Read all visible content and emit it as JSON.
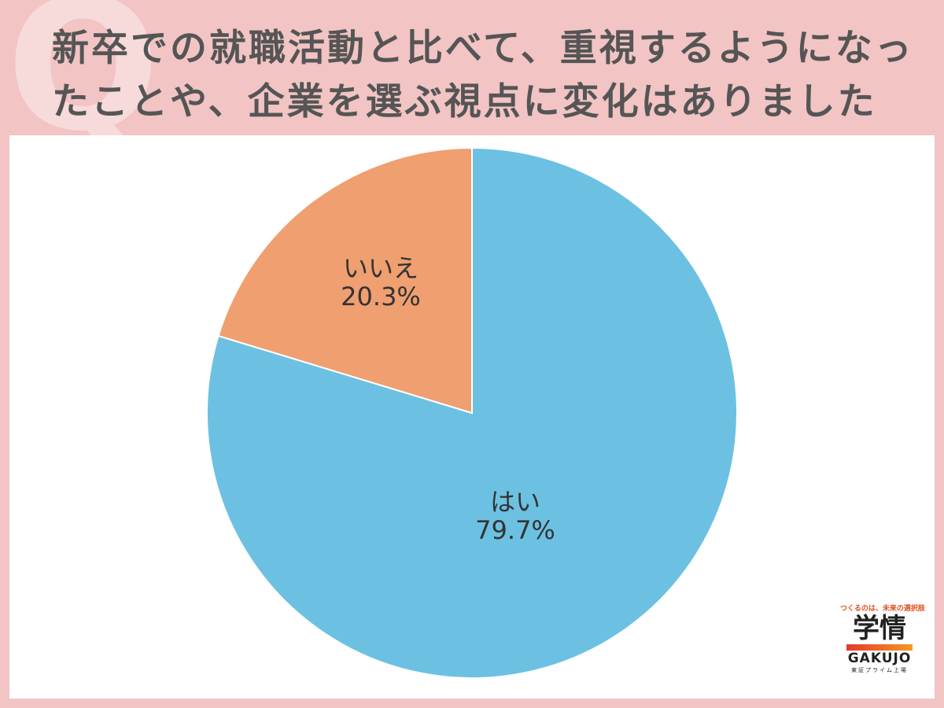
{
  "chart_data": {
    "type": "pie",
    "title": "新卒での就職活動と比べて、重視するようになったことや、企業を選ぶ視点に変化はありましたか？",
    "watermark": "Q",
    "categories": [
      "はい",
      "いいえ"
    ],
    "values": [
      79.7,
      20.3
    ],
    "value_labels": [
      "79.7%",
      "20.3%"
    ],
    "colors": [
      "#6cc1e2",
      "#ef9f70"
    ]
  },
  "logo": {
    "tagline": "つくるのは、未来の選択肢",
    "name": "学情",
    "roman": "GAKUJO",
    "note": "東証プライム上場"
  }
}
